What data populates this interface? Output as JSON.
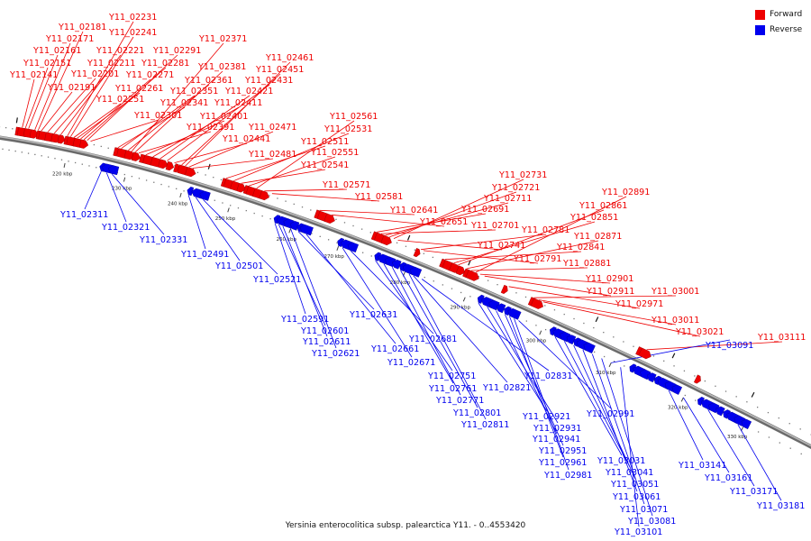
{
  "diagram": {
    "caption": "Yersinia enterocolitica subsp. palearctica Y11. - 0..4553420",
    "legend": [
      {
        "label": "Forward",
        "color": "#ee0000"
      },
      {
        "label": "Reverse",
        "color": "#0000ee"
      }
    ],
    "colors": {
      "forward": "#ee0000",
      "reverse": "#0000ee",
      "axis": "#8a8a8a"
    },
    "scale_unit": "kbp",
    "scale_ticks": [
      "220 kbp",
      "230 kbp",
      "240 kbp",
      "250 kbp",
      "260 kbp",
      "270 kbp",
      "280 kbp",
      "290 kbp",
      "300 kbp",
      "310 kbp",
      "320 kbp",
      "330 kbp"
    ],
    "forward_genes": [
      "Y11_02141",
      "Y11_02151",
      "Y11_02161",
      "Y11_02171",
      "Y11_02181",
      "Y11_02191",
      "Y11_02201",
      "Y11_02211",
      "Y11_02221",
      "Y11_02231",
      "Y11_02241",
      "Y11_02251",
      "Y11_02261",
      "Y11_02271",
      "Y11_02281",
      "Y11_02291",
      "Y11_02301",
      "Y11_02341",
      "Y11_02351",
      "Y11_02361",
      "Y11_02371",
      "Y11_02381",
      "Y11_02391",
      "Y11_02401",
      "Y11_02411",
      "Y11_02421",
      "Y11_02431",
      "Y11_02441",
      "Y11_02451",
      "Y11_02461",
      "Y11_02471",
      "Y11_02481",
      "Y11_02511",
      "Y11_02531",
      "Y11_02541",
      "Y11_02551",
      "Y11_02561",
      "Y11_02571",
      "Y11_02581",
      "Y11_02641",
      "Y11_02651",
      "Y11_02691",
      "Y11_02701",
      "Y11_02711",
      "Y11_02721",
      "Y11_02731",
      "Y11_02741",
      "Y11_02781",
      "Y11_02791",
      "Y11_02841",
      "Y11_02851",
      "Y11_02861",
      "Y11_02871",
      "Y11_02881",
      "Y11_02891",
      "Y11_02901",
      "Y11_02911",
      "Y11_02971",
      "Y11_03001",
      "Y11_03011",
      "Y11_03021",
      "Y11_03111"
    ],
    "reverse_genes": [
      "Y11_02311",
      "Y11_02321",
      "Y11_02331",
      "Y11_02491",
      "Y11_02501",
      "Y11_02521",
      "Y11_02591",
      "Y11_02601",
      "Y11_02611",
      "Y11_02621",
      "Y11_02631",
      "Y11_02661",
      "Y11_02671",
      "Y11_02681",
      "Y11_02751",
      "Y11_02761",
      "Y11_02771",
      "Y11_02801",
      "Y11_02811",
      "Y11_02821",
      "Y11_02831",
      "Y11_02921",
      "Y11_02931",
      "Y11_02941",
      "Y11_02951",
      "Y11_02961",
      "Y11_02981",
      "Y11_02991",
      "Y11_03031",
      "Y11_03041",
      "Y11_03051",
      "Y11_03061",
      "Y11_03071",
      "Y11_03081",
      "Y11_03091",
      "Y11_03101",
      "Y11_03141",
      "Y11_03161",
      "Y11_03171",
      "Y11_03181"
    ]
  }
}
